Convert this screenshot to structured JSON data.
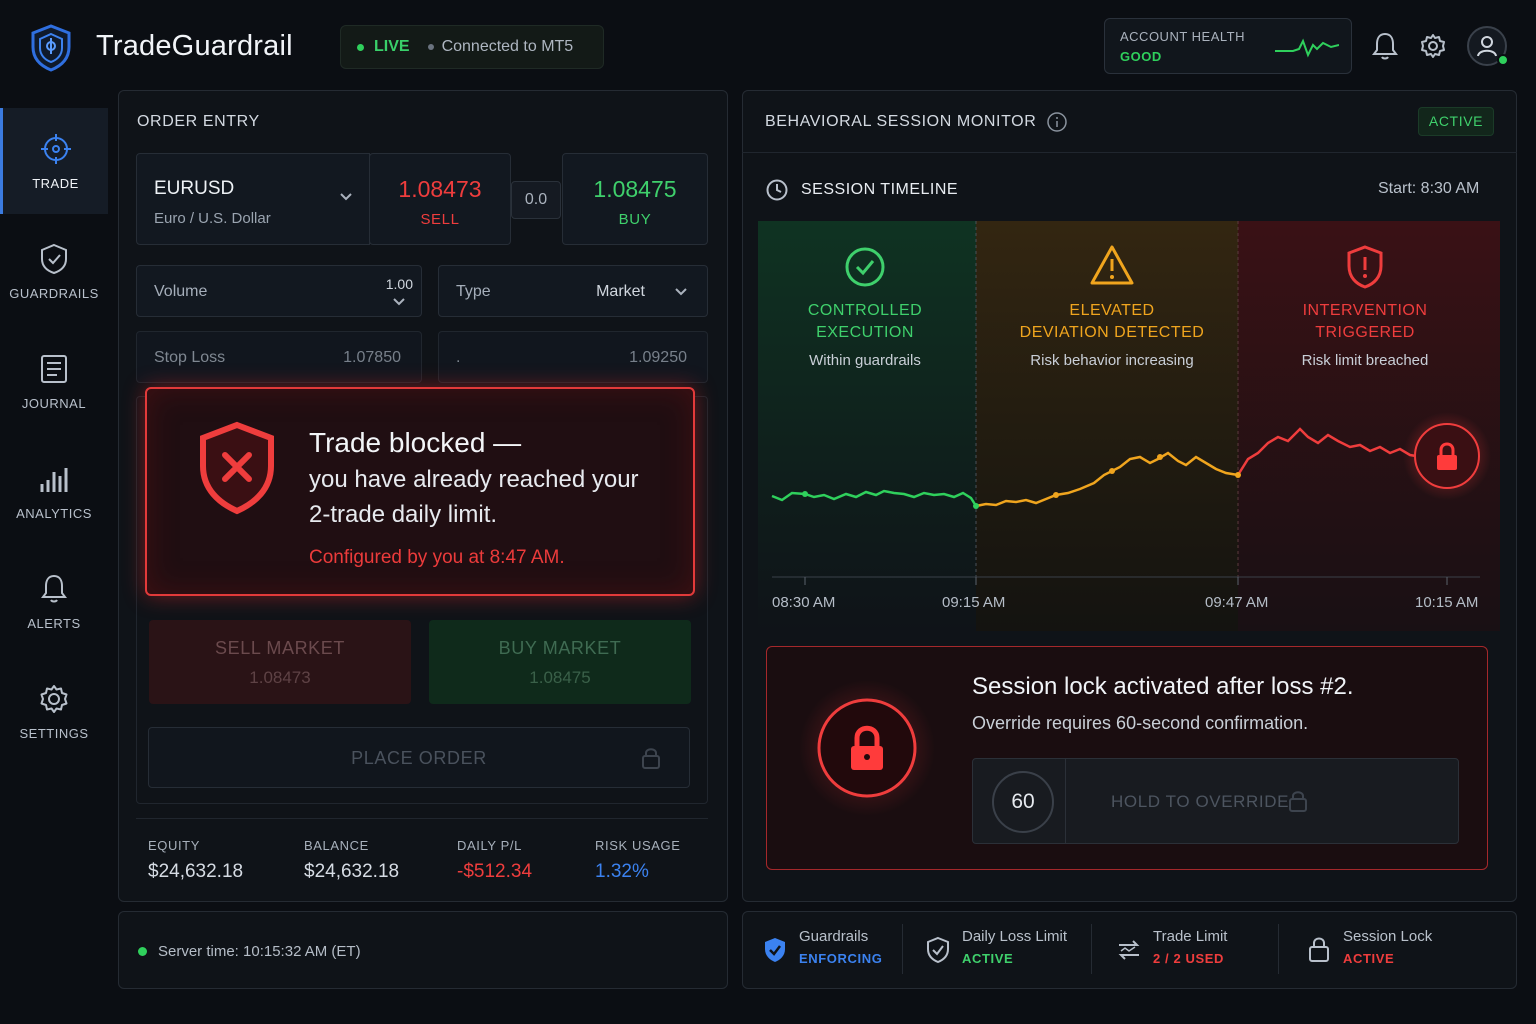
{
  "header": {
    "app_title": "TradeGuardrail",
    "live_label": "LIVE",
    "connection": "Connected to MT5",
    "health_label": "ACCOUNT HEALTH",
    "health_value": "GOOD"
  },
  "sidebar": {
    "items": [
      {
        "label": "TRADE",
        "icon": "crosshair-icon",
        "active": true
      },
      {
        "label": "GUARDRAILS",
        "icon": "shield-check-icon"
      },
      {
        "label": "JOURNAL",
        "icon": "journal-icon"
      },
      {
        "label": "ANALYTICS",
        "icon": "bar-chart-icon"
      },
      {
        "label": "ALERTS",
        "icon": "bell-icon"
      },
      {
        "label": "SETTINGS",
        "icon": "gear-icon"
      }
    ]
  },
  "order_entry": {
    "title": "ORDER ENTRY",
    "symbol": "EURUSD",
    "symbol_name": "Euro / U.S. Dollar",
    "sell_price": "1.08473",
    "sell_label": "SELL",
    "spread": "0.0",
    "buy_price": "1.08475",
    "buy_label": "BUY",
    "volume_label": "Volume",
    "volume_value": "1.00",
    "type_label": "Type",
    "type_value": "Market",
    "stop_loss_label": "Stop Loss",
    "stop_loss_value": "1.07850",
    "take_profit_label": ".",
    "take_profit_value": "1.09250",
    "alert": {
      "title": "Trade blocked —",
      "line1": "you have already reached your",
      "line2": "2-trade daily limit.",
      "configured": "Configured by you at 8:47 AM."
    },
    "sell_market_label": "SELL MARKET",
    "sell_market_price": "1.08473",
    "buy_market_label": "BUY MARKET",
    "buy_market_price": "1.08475",
    "place_order_label": "PLACE ORDER"
  },
  "account": {
    "equity_label": "EQUITY",
    "equity": "$24,632.18",
    "balance_label": "BALANCE",
    "balance": "$24,632.18",
    "pl_label": "DAILY P/L",
    "pl": "-$512.34",
    "risk_label": "RISK USAGE",
    "risk": "1.32%"
  },
  "server_time": "Server time: 10:15:32 AM (ET)",
  "monitor": {
    "title": "BEHAVIORAL SESSION MONITOR",
    "status": "ACTIVE",
    "timeline_title": "SESSION TIMELINE",
    "start": "Start: 8:30 AM",
    "zones": [
      {
        "title1": "CONTROLLED",
        "title2": "EXECUTION",
        "sub": "Within guardrails",
        "color": "#3fd06c"
      },
      {
        "title1": "ELEVATED",
        "title2": "DEVIATION DETECTED",
        "sub": "Risk behavior increasing",
        "color": "#f0a51e"
      },
      {
        "title1": "INTERVENTION",
        "title2": "TRIGGERED",
        "sub": "Risk limit breached",
        "color": "#ef3d3d"
      }
    ],
    "axis_labels": [
      "08:30 AM",
      "09:15 AM",
      "09:47 AM",
      "10:15 AM"
    ],
    "lock_title": "Session lock activated after loss #2.",
    "lock_sub": "Override requires 60-second confirmation.",
    "countdown": "60",
    "override_label": "HOLD TO OVERRIDE"
  },
  "status_bar": [
    {
      "name": "Guardrails",
      "value": "ENFORCING",
      "color": "#3b82f0",
      "icon": "shield-check-icon"
    },
    {
      "name": "Daily Loss Limit",
      "value": "ACTIVE",
      "color": "#3fd06c",
      "icon": "shield-outline-icon"
    },
    {
      "name": "Trade Limit",
      "value": "2 / 2 USED",
      "color": "#ef3d3d",
      "icon": "trade-arrows-icon"
    },
    {
      "name": "Session Lock",
      "value": "ACTIVE",
      "color": "#ef3d3d",
      "icon": "lock-icon"
    }
  ]
}
